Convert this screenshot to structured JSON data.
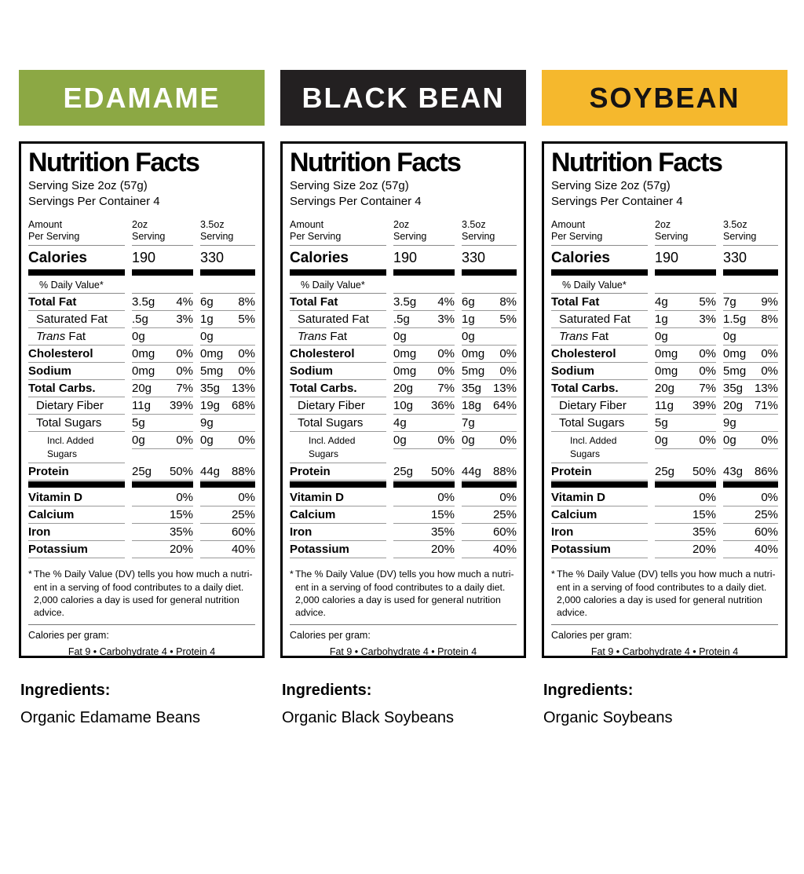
{
  "page": {
    "background": "#ffffff"
  },
  "panel": {
    "title": "Nutrition Facts",
    "serving_size": "Serving Size 2oz (57g)",
    "servings_per_container": "Servings Per Container 4",
    "col_amount": "Amount\nPer Serving",
    "col_2oz": "2oz\nServing",
    "col_35oz": "3.5oz\nServing",
    "calories_label": "Calories",
    "daily_value_header": "% Daily Value*",
    "footnote_asterisk": "*",
    "footnote": "The % Daily Value (DV) tells you how much a nutri-\nent in a serving of food contributes to a daily diet.\n2,000 calories a day is used for general nutrition\nadvice.",
    "calories_per_gram_label": "Calories per gram:",
    "calories_per_gram_values": "Fat 9   •   Carbohydrate 4   •   Protein 4",
    "ingredients_heading": "Ingredients:"
  },
  "products": [
    {
      "name": "EDAMAME",
      "banner_bg": "#8CA844",
      "banner_fg": "#FFFFFF",
      "calories": {
        "v1": "190",
        "v2": "330"
      },
      "rows": [
        {
          "label": "Total Fat",
          "v1": "3.5g",
          "d1": "4%",
          "v2": "6g",
          "d2": "8%"
        },
        {
          "label": "Saturated Fat",
          "v1": ".5g",
          "d1": "3%",
          "v2": "1g",
          "d2": "5%"
        },
        {
          "label": "Trans Fat",
          "v1": "0g",
          "d1": "",
          "v2": "0g",
          "d2": ""
        },
        {
          "label": "Cholesterol",
          "v1": "0mg",
          "d1": "0%",
          "v2": "0mg",
          "d2": "0%"
        },
        {
          "label": "Sodium",
          "v1": "0mg",
          "d1": "0%",
          "v2": "5mg",
          "d2": "0%"
        },
        {
          "label": "Total Carbs.",
          "v1": "20g",
          "d1": "7%",
          "v2": "35g",
          "d2": "13%"
        },
        {
          "label": "Dietary Fiber",
          "v1": "11g",
          "d1": "39%",
          "v2": "19g",
          "d2": "68%"
        },
        {
          "label": "Total Sugars",
          "v1": "5g",
          "d1": "",
          "v2": "9g",
          "d2": ""
        },
        {
          "label": "Incl. Added Sugars",
          "v1": "0g",
          "d1": "0%",
          "v2": "0g",
          "d2": "0%"
        },
        {
          "label": "Protein",
          "v1": "25g",
          "d1": "50%",
          "v2": "44g",
          "d2": "88%"
        }
      ],
      "minerals": [
        {
          "label": "Vitamin D",
          "d1": "0%",
          "d2": "0%"
        },
        {
          "label": "Calcium",
          "d1": "15%",
          "d2": "25%"
        },
        {
          "label": "Iron",
          "d1": "35%",
          "d2": "60%"
        },
        {
          "label": "Potassium",
          "d1": "20%",
          "d2": "40%"
        }
      ],
      "ingredients": "Organic Edamame Beans"
    },
    {
      "name": "BLACK BEAN",
      "banner_bg": "#232021",
      "banner_fg": "#FFFFFF",
      "calories": {
        "v1": "190",
        "v2": "330"
      },
      "rows": [
        {
          "label": "Total Fat",
          "v1": "3.5g",
          "d1": "4%",
          "v2": "6g",
          "d2": "8%"
        },
        {
          "label": "Saturated Fat",
          "v1": ".5g",
          "d1": "3%",
          "v2": "1g",
          "d2": "5%"
        },
        {
          "label": "Trans Fat",
          "v1": "0g",
          "d1": "",
          "v2": "0g",
          "d2": ""
        },
        {
          "label": "Cholesterol",
          "v1": "0mg",
          "d1": "0%",
          "v2": "0mg",
          "d2": "0%"
        },
        {
          "label": "Sodium",
          "v1": "0mg",
          "d1": "0%",
          "v2": "5mg",
          "d2": "0%"
        },
        {
          "label": "Total Carbs.",
          "v1": "20g",
          "d1": "7%",
          "v2": "35g",
          "d2": "13%"
        },
        {
          "label": "Dietary Fiber",
          "v1": "10g",
          "d1": "36%",
          "v2": "18g",
          "d2": "64%"
        },
        {
          "label": "Total Sugars",
          "v1": "4g",
          "d1": "",
          "v2": "7g",
          "d2": ""
        },
        {
          "label": "Incl. Added Sugars",
          "v1": "0g",
          "d1": "0%",
          "v2": "0g",
          "d2": "0%"
        },
        {
          "label": "Protein",
          "v1": "25g",
          "d1": "50%",
          "v2": "44g",
          "d2": "88%"
        }
      ],
      "minerals": [
        {
          "label": "Vitamin D",
          "d1": "0%",
          "d2": "0%"
        },
        {
          "label": "Calcium",
          "d1": "15%",
          "d2": "25%"
        },
        {
          "label": "Iron",
          "d1": "35%",
          "d2": "60%"
        },
        {
          "label": "Potassium",
          "d1": "20%",
          "d2": "40%"
        }
      ],
      "ingredients": "Organic Black Soybeans"
    },
    {
      "name": "SOYBEAN",
      "banner_bg": "#F5B82D",
      "banner_fg": "#161414",
      "calories": {
        "v1": "190",
        "v2": "330"
      },
      "rows": [
        {
          "label": "Total Fat",
          "v1": "4g",
          "d1": "5%",
          "v2": "7g",
          "d2": "9%"
        },
        {
          "label": "Saturated Fat",
          "v1": "1g",
          "d1": "3%",
          "v2": "1.5g",
          "d2": "8%"
        },
        {
          "label": "Trans Fat",
          "v1": "0g",
          "d1": "",
          "v2": "0g",
          "d2": ""
        },
        {
          "label": "Cholesterol",
          "v1": "0mg",
          "d1": "0%",
          "v2": "0mg",
          "d2": "0%"
        },
        {
          "label": "Sodium",
          "v1": "0mg",
          "d1": "0%",
          "v2": "5mg",
          "d2": "0%"
        },
        {
          "label": "Total Carbs.",
          "v1": "20g",
          "d1": "7%",
          "v2": "35g",
          "d2": "13%"
        },
        {
          "label": "Dietary Fiber",
          "v1": "11g",
          "d1": "39%",
          "v2": "20g",
          "d2": "71%"
        },
        {
          "label": "Total Sugars",
          "v1": "5g",
          "d1": "",
          "v2": "9g",
          "d2": ""
        },
        {
          "label": "Incl. Added Sugars",
          "v1": "0g",
          "d1": "0%",
          "v2": "0g",
          "d2": "0%"
        },
        {
          "label": "Protein",
          "v1": "25g",
          "d1": "50%",
          "v2": "43g",
          "d2": "86%"
        }
      ],
      "minerals": [
        {
          "label": "Vitamin D",
          "d1": "0%",
          "d2": "0%"
        },
        {
          "label": "Calcium",
          "d1": "15%",
          "d2": "25%"
        },
        {
          "label": "Iron",
          "d1": "35%",
          "d2": "60%"
        },
        {
          "label": "Potassium",
          "d1": "20%",
          "d2": "40%"
        }
      ],
      "ingredients": "Organic Soybeans"
    }
  ]
}
